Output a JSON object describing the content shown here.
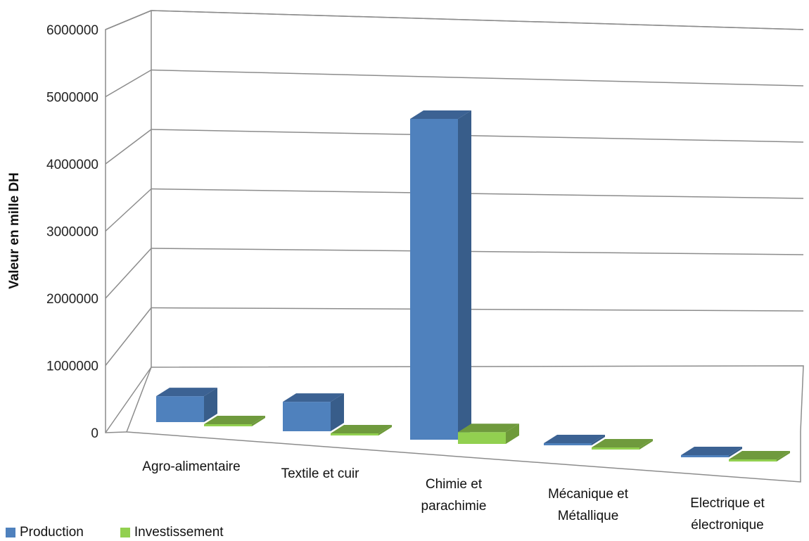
{
  "chart_data": {
    "type": "bar",
    "title": "",
    "xlabel": "",
    "ylabel": "Valeur en mille DH",
    "ylim": [
      0,
      6000000
    ],
    "yticks": [
      0,
      1000000,
      2000000,
      3000000,
      4000000,
      5000000,
      6000000
    ],
    "ytick_labels": [
      "0",
      "1000000",
      "2000000",
      "3000000",
      "4000000",
      "5000000",
      "6000000"
    ],
    "grid": true,
    "legend_position": "bottom-left",
    "categories": [
      [
        "Agro-alimentaire"
      ],
      [
        "Textile et cuir"
      ],
      [
        "Chimie et",
        "parachimie"
      ],
      [
        "Mécanique et",
        "Métallique"
      ],
      [
        "Electrique et",
        "électronique"
      ]
    ],
    "series": [
      {
        "name": "Production",
        "values": [
          440000,
          500000,
          5450000,
          20000,
          20000
        ],
        "colors": {
          "front": "#4F81BD",
          "side": "#385D8A",
          "top": "#3C6293"
        }
      },
      {
        "name": "Investissement",
        "values": [
          10000,
          20000,
          200000,
          5000,
          5000
        ],
        "colors": {
          "front": "#92D050",
          "side": "#6E9A3A",
          "top": "#6F9A3D"
        }
      }
    ]
  }
}
